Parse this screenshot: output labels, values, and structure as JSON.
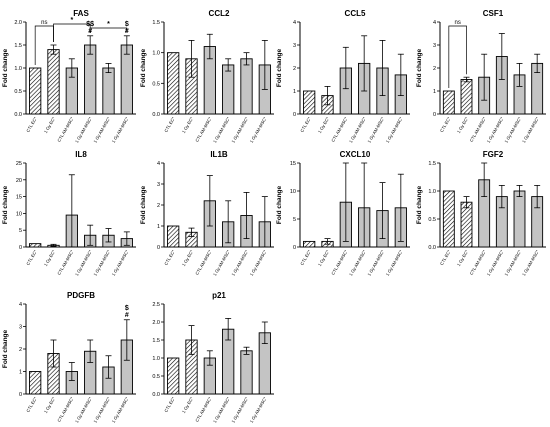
{
  "figure": {
    "categories": [
      "CTL EC°",
      "1 Gy EC°",
      "CTL AM-MSC°",
      "1 Gy AM-MSC°",
      "1 Gy AM-MSC°",
      "1 Gy AM-MSC°"
    ]
  },
  "chart_data": [
    {
      "type": "bar",
      "title": "FAS",
      "ylabel": "Fold change",
      "ylim": [
        0,
        2.0
      ],
      "yticks": [
        "0.0",
        "0.5",
        "1.0",
        "1.5",
        "2.0"
      ],
      "categories": [
        "CTL EC°",
        "1 Gy EC°",
        "CTL AM-MSC°",
        "1 Gy AM-MSC°",
        "1 Gy AM-MSC°",
        "1 Gy AM-MSC°"
      ],
      "values": [
        1.0,
        1.4,
        1.0,
        1.5,
        1.0,
        1.5
      ],
      "errors": [
        0,
        0.1,
        0.2,
        0.2,
        0.1,
        0.2
      ],
      "hatched": [
        true,
        true,
        false,
        false,
        false,
        false
      ],
      "annotations": [
        {
          "type": "bracket",
          "from": 0,
          "to": 1,
          "text": "ns"
        },
        {
          "type": "bracket",
          "from": 1,
          "to": 3,
          "text": "*"
        },
        {
          "type": "bracket",
          "from": 3,
          "to": 5,
          "text": "*"
        },
        {
          "type": "label",
          "bar": 3,
          "text": "$$"
        },
        {
          "type": "label",
          "bar": 3,
          "text": "#"
        },
        {
          "type": "label",
          "bar": 5,
          "text": "$"
        },
        {
          "type": "label",
          "bar": 5,
          "text": "#"
        }
      ]
    },
    {
      "type": "bar",
      "title": "CCL2",
      "ylabel": "Fold change",
      "ylim": [
        0,
        1.5
      ],
      "yticks": [
        "0.0",
        "0.5",
        "1.0",
        "1.5"
      ],
      "categories": [
        "CTL EC°",
        "1 Gy EC°",
        "CTL AM-MSC°",
        "1 Gy AM-MSC°",
        "1 Gy AM-MSC°",
        "1 Gy AM-MSC°"
      ],
      "values": [
        1.0,
        0.9,
        1.1,
        0.8,
        0.9,
        0.8
      ],
      "errors": [
        0,
        0.3,
        0.2,
        0.1,
        0.1,
        0.4
      ],
      "hatched": [
        true,
        true,
        false,
        false,
        false,
        false
      ],
      "annotations": []
    },
    {
      "type": "bar",
      "title": "CCL5",
      "ylabel": "Fold change",
      "ylim": [
        0,
        4
      ],
      "yticks": [
        "0",
        "1",
        "2",
        "3",
        "4"
      ],
      "categories": [
        "CTL EC°",
        "1 Gy EC°",
        "CTL AM-MSC°",
        "1 Gy AM-MSC°",
        "1 Gy AM-MSC°",
        "1 Gy AM-MSC°"
      ],
      "values": [
        1.0,
        0.8,
        2.0,
        2.2,
        2.0,
        1.7
      ],
      "errors": [
        0,
        0.4,
        0.9,
        1.2,
        1.2,
        0.9
      ],
      "hatched": [
        true,
        true,
        false,
        false,
        false,
        false
      ],
      "annotations": []
    },
    {
      "type": "bar",
      "title": "CSF1",
      "ylabel": "Fold change",
      "ylim": [
        0,
        4
      ],
      "yticks": [
        "0",
        "1",
        "2",
        "3",
        "4"
      ],
      "categories": [
        "CTL EC°",
        "1 Gy EC°",
        "CTL AM-MSC°",
        "1 Gy AM-MSC°",
        "1 Gy AM-MSC°",
        "1 Gy AM-MSC°"
      ],
      "values": [
        1.0,
        1.5,
        1.6,
        2.5,
        1.7,
        2.2
      ],
      "errors": [
        0,
        0.1,
        1.0,
        1.0,
        0.5,
        0.4
      ],
      "hatched": [
        true,
        true,
        false,
        false,
        false,
        false
      ],
      "annotations": [
        {
          "type": "bracket",
          "from": 0,
          "to": 1,
          "text": "ns"
        }
      ]
    },
    {
      "type": "bar",
      "title": "IL8",
      "ylabel": "Fold change",
      "ylim": [
        0,
        25
      ],
      "yticks": [
        "0",
        "5",
        "10",
        "15",
        "20",
        "25"
      ],
      "categories": [
        "CTL EC°",
        "1 Gy EC°",
        "CTL AM-MSC°",
        "1 Gy AM-MSC°",
        "1 Gy AM-MSC°",
        "1 Gy AM-MSC°"
      ],
      "values": [
        1.0,
        0.5,
        9.5,
        3.5,
        3.5,
        2.5
      ],
      "errors": [
        0,
        0.3,
        12.0,
        3.0,
        2.0,
        2.0
      ],
      "hatched": [
        true,
        true,
        false,
        false,
        false,
        false
      ],
      "annotations": []
    },
    {
      "type": "bar",
      "title": "IL1B",
      "ylabel": "Fold change",
      "ylim": [
        0,
        4
      ],
      "yticks": [
        "0",
        "1",
        "2",
        "3",
        "4"
      ],
      "categories": [
        "CTL EC°",
        "1 Gy EC°",
        "CTL AM-MSC°",
        "1 Gy AM-MSC°",
        "1 Gy AM-MSC°",
        "1 Gy AM-MSC°"
      ],
      "values": [
        1.0,
        0.7,
        2.2,
        1.2,
        1.5,
        1.2
      ],
      "errors": [
        0,
        0.2,
        1.2,
        1.0,
        1.1,
        1.2
      ],
      "hatched": [
        true,
        true,
        false,
        false,
        false,
        false
      ],
      "annotations": []
    },
    {
      "type": "bar",
      "title": "CXCL10",
      "ylabel": "Fold change",
      "ylim": [
        0,
        15
      ],
      "yticks": [
        "0",
        "5",
        "10",
        "15"
      ],
      "categories": [
        "CTL EC°",
        "1 Gy EC°",
        "CTL AM-MSC°",
        "1 Gy AM-MSC°",
        "1 Gy AM-MSC°",
        "1 Gy AM-MSC°"
      ],
      "values": [
        1.0,
        1.0,
        8.0,
        7.0,
        6.5,
        7.0
      ],
      "errors": [
        0,
        0.5,
        7.0,
        8.0,
        5.0,
        6.0
      ],
      "hatched": [
        true,
        true,
        false,
        false,
        false,
        false
      ],
      "annotations": []
    },
    {
      "type": "bar",
      "title": "FGF2",
      "ylabel": "Fold change",
      "ylim": [
        0,
        1.5
      ],
      "yticks": [
        "0.0",
        "0.5",
        "1.0",
        "1.5"
      ],
      "categories": [
        "CTL EC°",
        "1 Gy EC°",
        "CTL AM-MSC°",
        "1 Gy AM-MSC°",
        "1 Gy AM-MSC°",
        "1 Gy AM-MSC°"
      ],
      "values": [
        1.0,
        0.8,
        1.2,
        0.9,
        1.0,
        0.9
      ],
      "errors": [
        0,
        0.1,
        0.3,
        0.2,
        0.1,
        0.2
      ],
      "hatched": [
        true,
        true,
        false,
        false,
        false,
        false
      ],
      "annotations": []
    },
    {
      "type": "bar",
      "title": "PDGFB",
      "ylabel": "Fold change",
      "ylim": [
        0,
        4
      ],
      "yticks": [
        "0",
        "1",
        "2",
        "3",
        "4"
      ],
      "categories": [
        "CTL EC°",
        "1 Gy EC°",
        "CTL AM-MSC°",
        "1 Gy AM-MSC°",
        "1 Gy AM-MSC°",
        "1 Gy AM-MSC°"
      ],
      "values": [
        1.0,
        1.8,
        1.0,
        1.9,
        1.2,
        2.4
      ],
      "errors": [
        0,
        0.6,
        0.4,
        0.5,
        0.5,
        0.9
      ],
      "hatched": [
        true,
        true,
        false,
        false,
        false,
        false
      ],
      "annotations": [
        {
          "type": "label",
          "bar": 5,
          "text": "$"
        },
        {
          "type": "label",
          "bar": 5,
          "text": "#"
        }
      ]
    },
    {
      "type": "bar",
      "title": "p21",
      "ylabel": "",
      "ylim": [
        0,
        2.5
      ],
      "yticks": [
        "0.0",
        "0.5",
        "1.0",
        "1.5",
        "2.0",
        "2.5"
      ],
      "categories": [
        "CTL EC°",
        "1 Gy EC°",
        "CTL AM-MSC°",
        "1 Gy AM-MSC°",
        "1 Gy AM-MSC°",
        "1 Gy AM-MSC°"
      ],
      "values": [
        1.0,
        1.5,
        1.0,
        1.8,
        1.2,
        1.7
      ],
      "errors": [
        0,
        0.4,
        0.2,
        0.3,
        0.1,
        0.3
      ],
      "hatched": [
        true,
        true,
        false,
        false,
        false,
        false
      ],
      "annotations": []
    }
  ]
}
